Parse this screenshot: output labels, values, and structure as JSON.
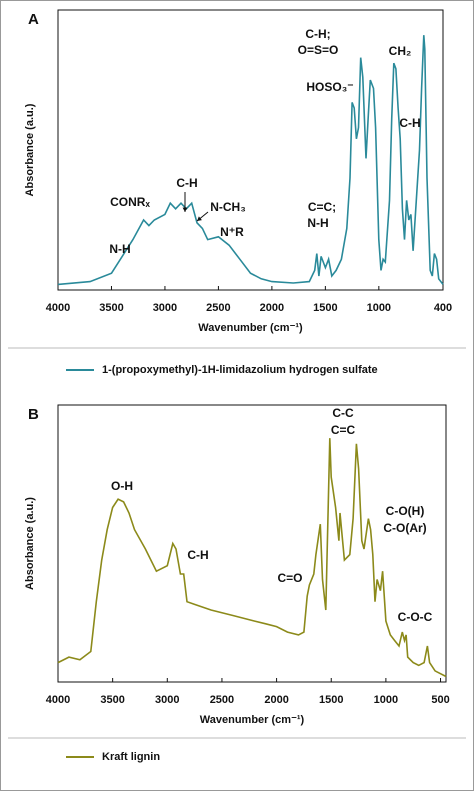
{
  "chart_data": [
    {
      "type": "line",
      "panel": "A",
      "ylabel": "Absorbance (a.u.)",
      "xlabel": "Wavenumber (cm⁻¹)",
      "xlim": [
        4000,
        400
      ],
      "ylim": [
        0,
        100
      ],
      "xticks": [
        4000,
        3500,
        3000,
        2500,
        2000,
        1500,
        1000,
        400
      ],
      "x": [
        4000,
        3700,
        3500,
        3400,
        3300,
        3200,
        3150,
        3100,
        3000,
        2950,
        2900,
        2850,
        2800,
        2750,
        2700,
        2650,
        2600,
        2500,
        2400,
        2300,
        2200,
        2100,
        2000,
        1800,
        1650,
        1600,
        1580,
        1560,
        1540,
        1500,
        1470,
        1440,
        1400,
        1350,
        1300,
        1270,
        1250,
        1230,
        1210,
        1190,
        1170,
        1150,
        1120,
        1100,
        1080,
        1050,
        1030,
        1000,
        980,
        960,
        940,
        900,
        880,
        860,
        840,
        820,
        800,
        780,
        760,
        740,
        720,
        700,
        680,
        650,
        620,
        600,
        580,
        570,
        550,
        520,
        500,
        480,
        460,
        440,
        400
      ],
      "series": [
        {
          "name": "1-(propoxymethyl)-1H-limidazolium hydrogen sulfate",
          "color": "#2a8a9a",
          "values": [
            2,
            3,
            6,
            12,
            18,
            25,
            23,
            25,
            27,
            31,
            29,
            31,
            29,
            31,
            24,
            22,
            18,
            19,
            16,
            11,
            6,
            4,
            3,
            2.5,
            3,
            7,
            13,
            5,
            12,
            8,
            11,
            5,
            7,
            11,
            22,
            40,
            67,
            65,
            54,
            58,
            83,
            76,
            47,
            61,
            75,
            72,
            58,
            18,
            7,
            11,
            10,
            32,
            61,
            81,
            79,
            65,
            54,
            29,
            18,
            32,
            25,
            27,
            14,
            32,
            50,
            72,
            91,
            86,
            40,
            7,
            5,
            13,
            11,
            4,
            2
          ]
        }
      ],
      "annotations": [
        "N-H",
        "CONRₓ",
        "C-H",
        "N-CH₃",
        "N⁺R",
        "C=C;",
        "N-H",
        "HOSO₃⁻",
        "C-H;",
        "O=S=O",
        "CH₂",
        "C-H"
      ]
    },
    {
      "type": "line",
      "panel": "B",
      "ylabel": "Absorbance (a.u.)",
      "xlabel": "Wavenumber (cm⁻¹)",
      "xlim": [
        4000,
        450
      ],
      "ylim": [
        0,
        100
      ],
      "xticks": [
        4000,
        3500,
        3000,
        2500,
        2000,
        1500,
        1000,
        500
      ],
      "x": [
        4000,
        3900,
        3800,
        3700,
        3650,
        3600,
        3550,
        3500,
        3450,
        3400,
        3350,
        3300,
        3200,
        3100,
        3000,
        2950,
        2920,
        2880,
        2850,
        2820,
        2750,
        2600,
        2400,
        2200,
        2100,
        2000,
        1900,
        1800,
        1750,
        1720,
        1700,
        1660,
        1640,
        1600,
        1580,
        1550,
        1513,
        1500,
        1460,
        1430,
        1420,
        1380,
        1330,
        1300,
        1270,
        1250,
        1220,
        1200,
        1160,
        1140,
        1120,
        1100,
        1080,
        1050,
        1030,
        1000,
        960,
        920,
        880,
        850,
        830,
        815,
        800,
        750,
        700,
        650,
        620,
        600,
        550,
        500,
        450
      ],
      "series": [
        {
          "name": "Kraft lignin",
          "color": "#8c8a1a",
          "values": [
            7,
            9,
            8,
            11,
            29,
            44,
            55,
            63,
            66,
            65,
            61,
            55,
            48,
            40,
            42,
            50,
            48,
            39,
            39,
            29,
            28,
            26,
            24,
            22,
            21,
            20,
            18,
            17,
            18,
            31,
            35,
            39,
            46,
            57,
            37,
            26,
            88,
            74,
            63,
            51,
            61,
            44,
            46,
            59,
            86,
            77,
            51,
            48,
            59,
            55,
            46,
            29,
            37,
            33,
            40,
            22,
            17,
            15,
            13,
            18,
            15,
            17,
            9,
            7,
            6,
            7,
            13,
            7,
            4,
            3,
            2
          ]
        }
      ],
      "annotations": [
        "O-H",
        "C-H",
        "C=O",
        "C-C",
        "C=C",
        "C-O(H)",
        "C-O(Ar)",
        "C-O-C"
      ]
    }
  ]
}
